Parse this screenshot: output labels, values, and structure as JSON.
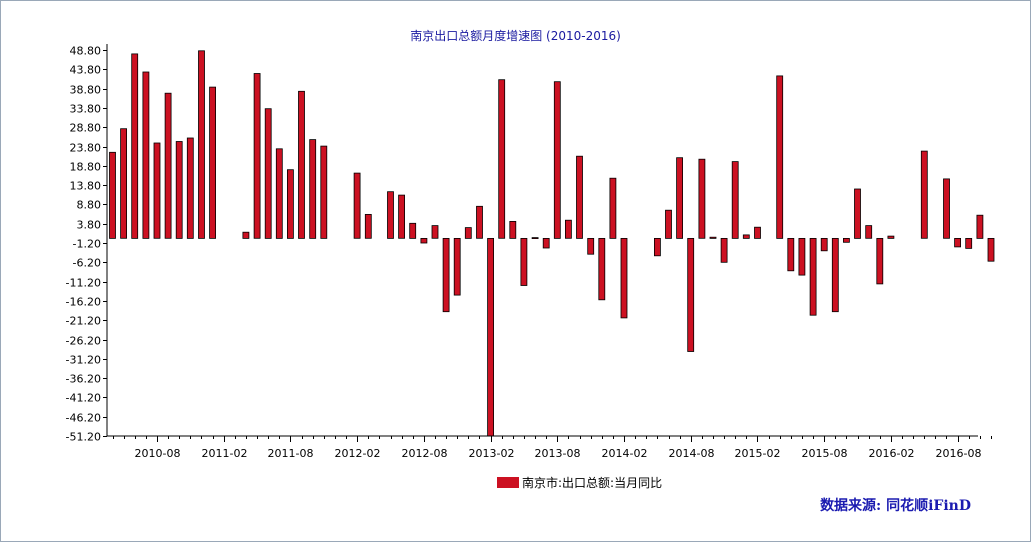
{
  "title": "南京出口总额月度增速图 (2010-2016)",
  "legend_label": "南京市:出口总额:当月同比",
  "source_text": "数据来源: 同花顺iFinD",
  "colors": {
    "bar": "#cc1122",
    "bar_stroke": "#000000",
    "axis": "#000000",
    "title": "#1a1aa0",
    "source": "#1a1ab0",
    "border": "#9aa8b8"
  },
  "chart_data": {
    "type": "bar",
    "title": "南京出口总额月度增速图 (2010-2016)",
    "series": [
      {
        "name": "南京市:出口总额:当月同比",
        "values": [
          22.3,
          28.4,
          47.8,
          43.1,
          24.7,
          37.6,
          25.1,
          26.0,
          48.6,
          39.2,
          null,
          null,
          1.6,
          42.7,
          33.6,
          23.2,
          17.8,
          38.1,
          25.6,
          23.9,
          null,
          null,
          16.9,
          6.2,
          null,
          12.1,
          11.2,
          3.9,
          -1.2,
          3.3,
          -19.0,
          -14.7,
          2.8,
          8.3,
          -52.0,
          41.1,
          4.4,
          -12.2,
          0.2,
          -2.5,
          40.6,
          4.7,
          21.3,
          -4.1,
          -15.9,
          15.6,
          -20.6,
          null,
          null,
          -4.5,
          7.3,
          20.9,
          -29.3,
          20.5,
          0.3,
          -6.2,
          19.9,
          0.9,
          2.9,
          null,
          42.1,
          -8.4,
          -9.5,
          -19.9,
          -3.2,
          -19.0,
          -1.0,
          12.8,
          3.3,
          -11.8,
          0.6,
          null,
          null,
          22.6,
          null,
          15.4,
          -2.2,
          -2.6,
          6.0,
          -5.9
        ]
      }
    ],
    "x_start": "2010-04",
    "x_end": "2016-11",
    "x_tick_labels": [
      "2010-08",
      "2011-02",
      "2011-08",
      "2012-02",
      "2012-08",
      "2013-02",
      "2013-08",
      "2014-02",
      "2014-08",
      "2015-02",
      "2015-08",
      "2016-02",
      "2016-08"
    ],
    "y_tick_labels": [
      "48.80",
      "43.80",
      "38.80",
      "33.80",
      "28.80",
      "23.80",
      "18.80",
      "13.80",
      "8.80",
      "3.80",
      "-1.20",
      "-6.20",
      "-11.20",
      "-16.20",
      "-21.20",
      "-26.20",
      "-31.20",
      "-36.20",
      "-41.20",
      "-46.20",
      "-51.20"
    ],
    "ylim": [
      -51.2,
      48.8
    ],
    "grid": false,
    "legend_position": "bottom"
  }
}
